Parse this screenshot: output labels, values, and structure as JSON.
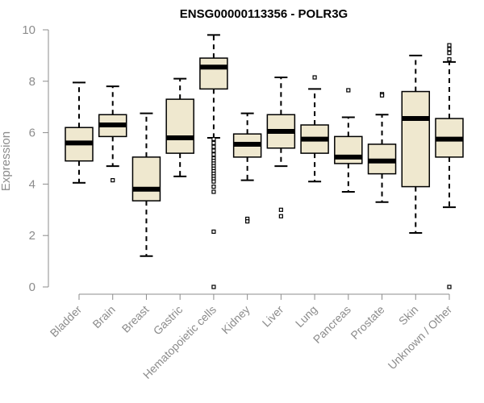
{
  "chart_data": {
    "type": "box",
    "title": "ENSG00000113356 - POLR3G",
    "xlabel": "",
    "ylabel": "Expression",
    "ylim": [
      0,
      10
    ],
    "yticks": [
      0,
      2,
      4,
      6,
      8,
      10
    ],
    "grid": false,
    "colors": {
      "box_fill": "#efe8cf",
      "stroke": "#000000",
      "axis": "#8c8c8c",
      "tick_text": "#8c8c8c",
      "title": "#000000"
    },
    "categories": [
      "Bladder",
      "Brain",
      "Breast",
      "Gastric",
      "Hematopoietic cells",
      "Kidney",
      "Liver",
      "Lung",
      "Pancreas",
      "Prostate",
      "Skin",
      "Unknown / Other"
    ],
    "boxes": [
      {
        "name": "Bladder",
        "whisker_low": 4.05,
        "q1": 4.9,
        "median": 5.6,
        "q3": 6.2,
        "whisker_high": 7.95,
        "outliers": []
      },
      {
        "name": "Brain",
        "whisker_low": 4.7,
        "q1": 5.85,
        "median": 6.3,
        "q3": 6.7,
        "whisker_high": 7.8,
        "outliers": [
          4.15
        ]
      },
      {
        "name": "Breast",
        "whisker_low": 1.2,
        "q1": 3.35,
        "median": 3.8,
        "q3": 5.05,
        "whisker_high": 6.75,
        "outliers": []
      },
      {
        "name": "Gastric",
        "whisker_low": 4.3,
        "q1": 5.2,
        "median": 5.8,
        "q3": 7.3,
        "whisker_high": 8.1,
        "outliers": []
      },
      {
        "name": "Hematopoietic cells",
        "whisker_low": 5.8,
        "q1": 7.7,
        "median": 8.55,
        "q3": 8.9,
        "whisker_high": 9.8,
        "outliers": [
          5.75,
          5.6,
          5.45,
          5.3,
          5.15,
          5.0,
          4.9,
          4.8,
          4.7,
          4.6,
          4.5,
          4.4,
          4.3,
          4.2,
          4.1,
          3.9,
          3.7,
          2.15,
          0.0
        ]
      },
      {
        "name": "Kidney",
        "whisker_low": 4.15,
        "q1": 5.05,
        "median": 5.55,
        "q3": 5.95,
        "whisker_high": 6.75,
        "outliers": [
          2.65,
          2.55
        ]
      },
      {
        "name": "Liver",
        "whisker_low": 4.7,
        "q1": 5.4,
        "median": 6.05,
        "q3": 6.7,
        "whisker_high": 8.15,
        "outliers": [
          3.0,
          2.75
        ]
      },
      {
        "name": "Lung",
        "whisker_low": 4.1,
        "q1": 5.2,
        "median": 5.75,
        "q3": 6.3,
        "whisker_high": 7.7,
        "outliers": [
          8.15
        ]
      },
      {
        "name": "Pancreas",
        "whisker_low": 3.7,
        "q1": 4.8,
        "median": 5.05,
        "q3": 5.85,
        "whisker_high": 6.6,
        "outliers": [
          7.65
        ]
      },
      {
        "name": "Prostate",
        "whisker_low": 3.3,
        "q1": 4.4,
        "median": 4.9,
        "q3": 5.55,
        "whisker_high": 6.7,
        "outliers": [
          7.5,
          7.45
        ]
      },
      {
        "name": "Skin",
        "whisker_low": 2.1,
        "q1": 3.9,
        "median": 6.55,
        "q3": 7.6,
        "whisker_high": 9.0,
        "outliers": []
      },
      {
        "name": "Unknown / Other",
        "whisker_low": 3.1,
        "q1": 5.05,
        "median": 5.75,
        "q3": 6.55,
        "whisker_high": 8.75,
        "outliers": [
          9.4,
          9.25,
          9.1,
          8.85,
          0.0
        ]
      }
    ]
  }
}
